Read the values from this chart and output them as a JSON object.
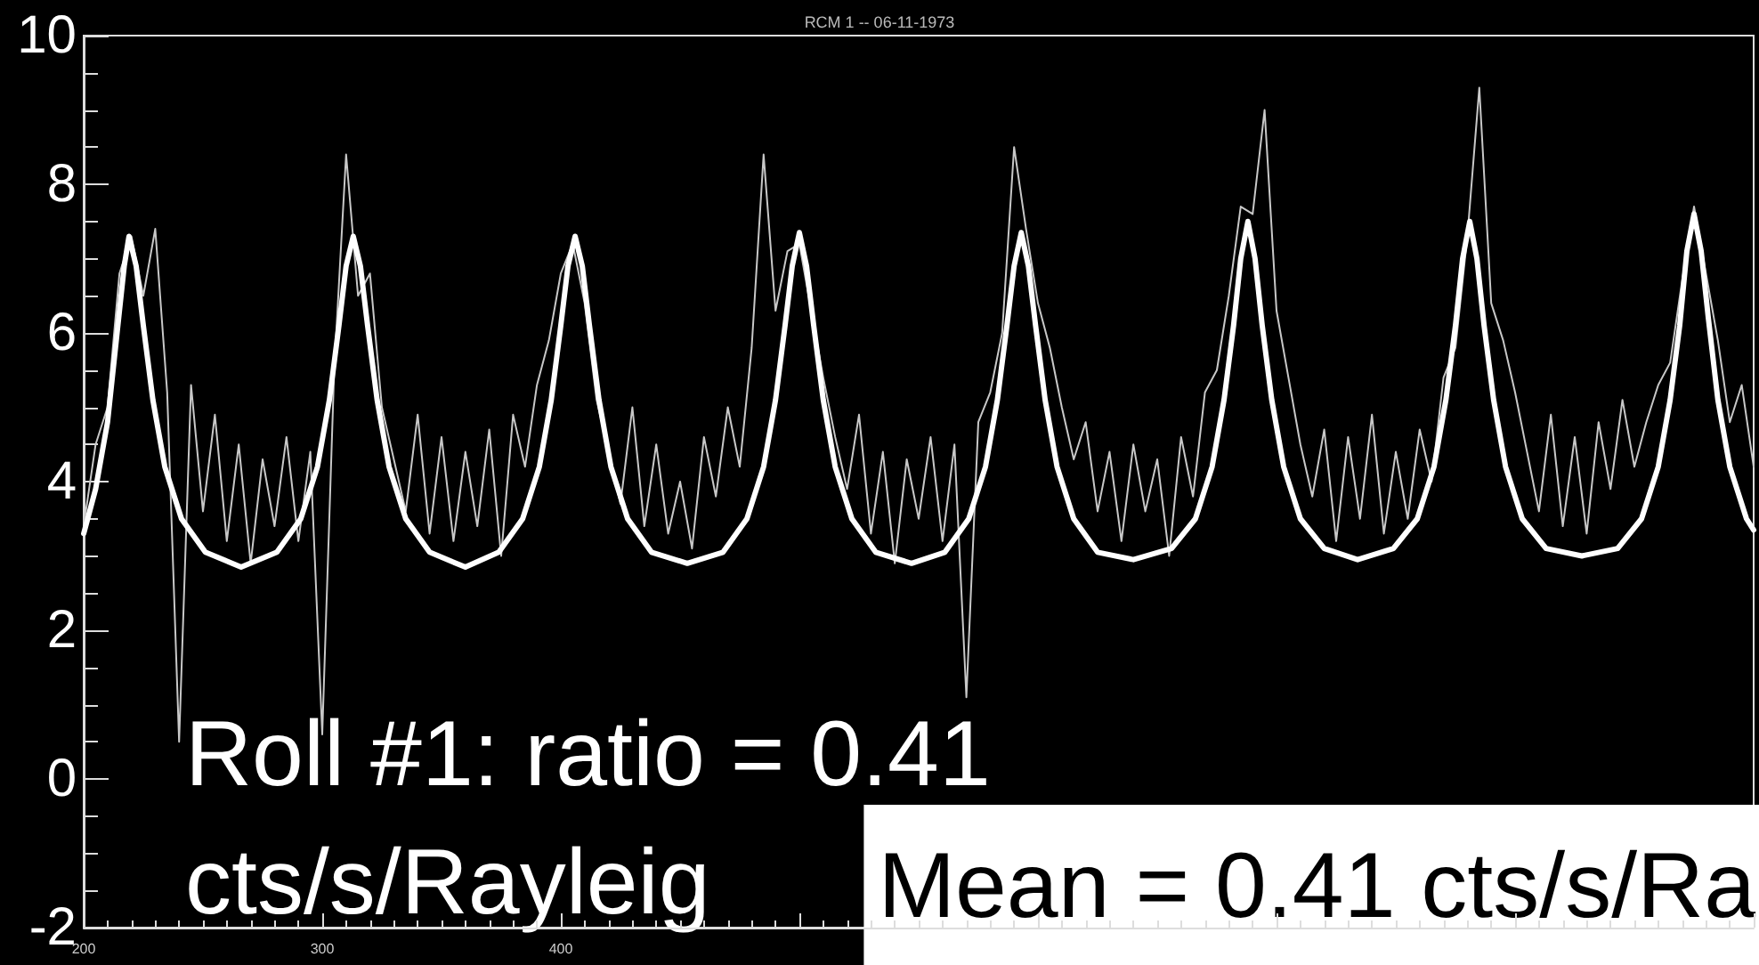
{
  "chart_data": {
    "type": "line",
    "title": "RCM 1 -- 06-11-1973",
    "xlim": [
      200,
      900
    ],
    "xticks": [
      200,
      300,
      400,
      {
        "value": 500,
        "label": null
      },
      {
        "value": 600,
        "label": null
      },
      {
        "value": 700,
        "label": null
      },
      {
        "value": 800,
        "label": null
      },
      {
        "value": 900,
        "label": null
      }
    ],
    "ylim": [
      -2,
      10
    ],
    "yticks": [
      -2,
      0,
      2,
      4,
      6,
      8,
      10
    ],
    "marker": "none",
    "series": [
      {
        "color": "#c8c8c8",
        "x": [
          200,
          205,
          210,
          215,
          220,
          225,
          230,
          235,
          240,
          245,
          250,
          255,
          260,
          265,
          270,
          275,
          280,
          285,
          290,
          295,
          300,
          305,
          310,
          315,
          320,
          325,
          330,
          335,
          340,
          345,
          350,
          355,
          360,
          365,
          370,
          375,
          380,
          385,
          390,
          395,
          400,
          405,
          410,
          415,
          420,
          425,
          430,
          435,
          440,
          445,
          450,
          455,
          460,
          465,
          470,
          475,
          480,
          485,
          490,
          495,
          500,
          505,
          510,
          515,
          520,
          525,
          530,
          535,
          540,
          545,
          550,
          555,
          560,
          565,
          570,
          575,
          580,
          585,
          590,
          595,
          600,
          605,
          610,
          615,
          620,
          625,
          630,
          635,
          640,
          645,
          650,
          655,
          660,
          665,
          670,
          675,
          680,
          685,
          690,
          695,
          700,
          705,
          710,
          715,
          720,
          725,
          730,
          735,
          740,
          745,
          750,
          755,
          760,
          765,
          770,
          775,
          780,
          785,
          790,
          795,
          800,
          805,
          810,
          815,
          820,
          825,
          830,
          835,
          840,
          845,
          850,
          855,
          860,
          865,
          870,
          875,
          880,
          885,
          890,
          895,
          900
        ],
        "values": [
          3.4,
          4.5,
          5.0,
          6.8,
          7.3,
          6.5,
          7.4,
          5.2,
          0.5,
          5.3,
          3.6,
          4.9,
          3.2,
          4.5,
          2.9,
          4.3,
          3.4,
          4.6,
          3.2,
          4.4,
          0.6,
          5.5,
          8.4,
          6.5,
          6.8,
          5.0,
          4.3,
          3.6,
          4.9,
          3.3,
          4.6,
          3.2,
          4.4,
          3.4,
          4.7,
          3.0,
          4.9,
          4.2,
          5.3,
          5.9,
          6.8,
          7.2,
          6.4,
          5.1,
          4.4,
          3.7,
          5.0,
          3.4,
          4.5,
          3.3,
          4.0,
          3.1,
          4.6,
          3.8,
          5.0,
          4.2,
          5.8,
          8.4,
          6.3,
          7.1,
          7.2,
          6.3,
          5.4,
          4.6,
          3.9,
          4.9,
          3.3,
          4.4,
          2.9,
          4.3,
          3.5,
          4.6,
          3.2,
          4.5,
          1.1,
          4.8,
          5.2,
          6.0,
          8.5,
          7.4,
          6.4,
          5.8,
          5.0,
          4.3,
          4.8,
          3.6,
          4.4,
          3.2,
          4.5,
          3.6,
          4.3,
          3.0,
          4.6,
          3.8,
          5.2,
          5.5,
          6.5,
          7.7,
          7.6,
          9.0,
          6.3,
          5.4,
          4.5,
          3.8,
          4.7,
          3.2,
          4.6,
          3.5,
          4.9,
          3.3,
          4.4,
          3.5,
          4.7,
          4.0,
          5.4,
          5.8,
          7.3,
          9.3,
          6.4,
          5.9,
          5.2,
          4.4,
          3.6,
          4.9,
          3.4,
          4.6,
          3.3,
          4.8,
          3.9,
          5.1,
          4.2,
          4.8,
          5.3,
          5.6,
          6.7,
          7.7,
          6.8,
          5.9,
          4.8,
          5.3,
          4.2
        ]
      },
      {
        "color": "#ffffff",
        "x": [
          200,
          205,
          210,
          214,
          217,
          219,
          222,
          225,
          229,
          234,
          241,
          251,
          266,
          281,
          291,
          298,
          303,
          307,
          310,
          313,
          316,
          319,
          323,
          328,
          335,
          345,
          360,
          374,
          384,
          391,
          396,
          400,
          403,
          406,
          409,
          412,
          416,
          421,
          428,
          438,
          453,
          468,
          478,
          485,
          490,
          494,
          497,
          500,
          503,
          506,
          510,
          515,
          522,
          532,
          547,
          561,
          571,
          578,
          583,
          587,
          590,
          593,
          596,
          599,
          603,
          608,
          615,
          625,
          640,
          656,
          666,
          673,
          678,
          682,
          685,
          688,
          691,
          694,
          698,
          703,
          710,
          720,
          734,
          749,
          759,
          766,
          771,
          775,
          778,
          781,
          784,
          787,
          791,
          796,
          803,
          813,
          828,
          843,
          853,
          860,
          865,
          869,
          872,
          875,
          878,
          881,
          885,
          890,
          897,
          900
        ],
        "values": [
          3.3,
          3.9,
          4.8,
          6.0,
          6.9,
          7.3,
          6.9,
          6.1,
          5.1,
          4.2,
          3.5,
          3.05,
          2.85,
          3.05,
          3.5,
          4.2,
          5.1,
          6.1,
          6.9,
          7.3,
          6.9,
          6.1,
          5.1,
          4.2,
          3.5,
          3.05,
          2.85,
          3.05,
          3.5,
          4.2,
          5.1,
          6.1,
          6.9,
          7.3,
          6.9,
          6.1,
          5.1,
          4.2,
          3.5,
          3.05,
          2.9,
          3.05,
          3.5,
          4.2,
          5.1,
          6.1,
          6.9,
          7.35,
          6.9,
          6.1,
          5.1,
          4.2,
          3.5,
          3.05,
          2.9,
          3.05,
          3.5,
          4.2,
          5.1,
          6.1,
          6.9,
          7.35,
          6.9,
          6.1,
          5.1,
          4.2,
          3.5,
          3.05,
          2.95,
          3.1,
          3.5,
          4.2,
          5.1,
          6.1,
          7.0,
          7.5,
          7.0,
          6.1,
          5.1,
          4.2,
          3.5,
          3.1,
          2.95,
          3.1,
          3.5,
          4.2,
          5.1,
          6.1,
          7.0,
          7.5,
          7.0,
          6.1,
          5.1,
          4.2,
          3.5,
          3.1,
          3.0,
          3.1,
          3.5,
          4.2,
          5.1,
          6.1,
          7.1,
          7.6,
          7.1,
          6.2,
          5.1,
          4.2,
          3.5,
          3.35
        ]
      }
    ],
    "annotations": [
      "Roll #1: ratio = 0.41\ncts/s/Rayleig",
      "Mean = 0.41 cts/s/Ra"
    ]
  }
}
